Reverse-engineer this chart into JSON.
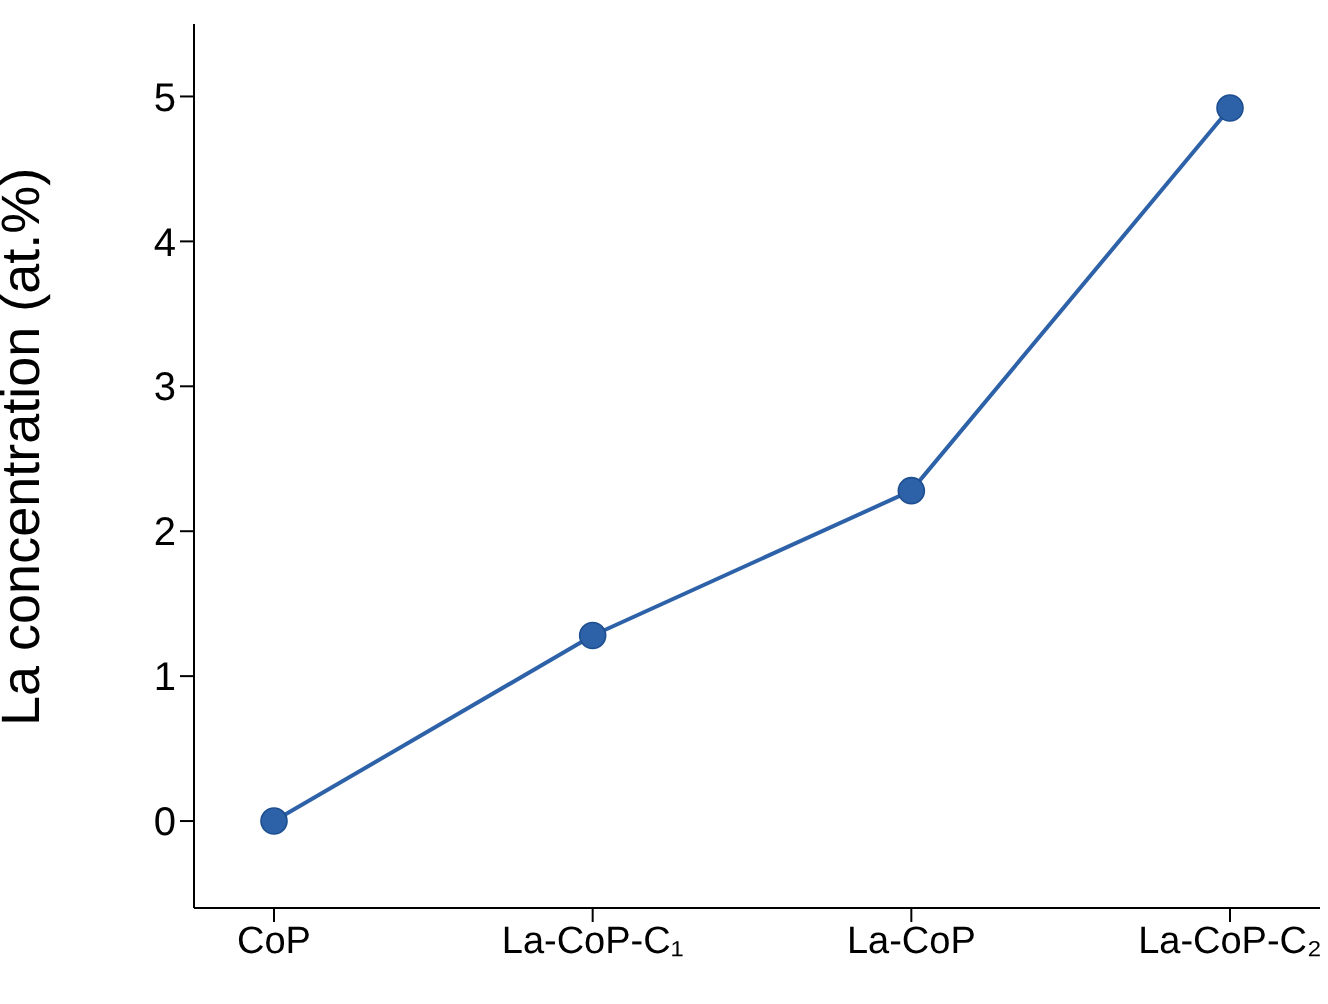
{
  "chart_data": {
    "type": "line",
    "ylabel": "La concentration (at.%)",
    "categories": [
      "CoP",
      "La-CoP-C₁",
      "La-CoP",
      "La-CoP-C₂"
    ],
    "series": [
      {
        "color": "#2e62a8",
        "values": [
          0,
          1.28,
          2.28,
          4.92
        ]
      }
    ],
    "ylim": [
      -0.6,
      5.5
    ],
    "yticks": [
      0,
      1,
      2,
      3,
      4,
      5
    ],
    "marker": "circle",
    "line_style": "solid",
    "grid": false
  }
}
